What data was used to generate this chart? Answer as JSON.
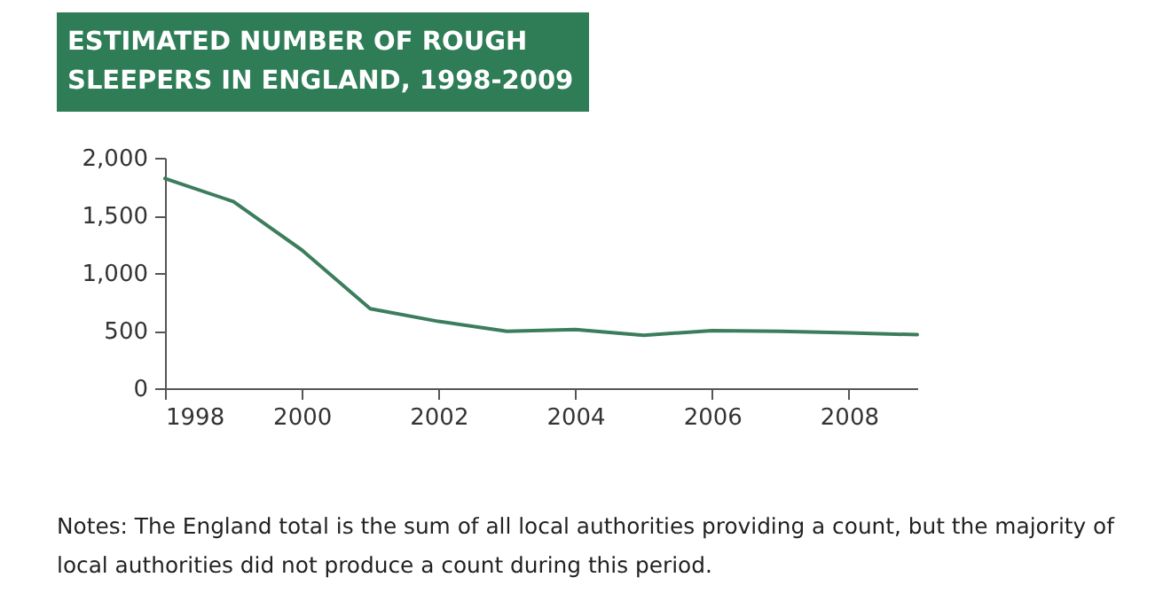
{
  "chart_data": {
    "type": "line",
    "title": "ESTIMATED NUMBER OF ROUGH SLEEPERS IN ENGLAND, 1998-2009",
    "x": [
      1998,
      1999,
      2000,
      2001,
      2002,
      2003,
      2004,
      2005,
      2006,
      2007,
      2008,
      2009
    ],
    "series": [
      {
        "color": "#3b7d5c",
        "values": [
          1820,
          1620,
          1200,
          690,
          580,
          495,
          510,
          460,
          500,
          495,
          480,
          465
        ]
      }
    ],
    "xlim": [
      1998,
      2009
    ],
    "xticks": [
      1998,
      2000,
      2002,
      2004,
      2006,
      2008
    ],
    "ylim": [
      0,
      2000
    ],
    "yticks": [
      {
        "value": 0,
        "label": "0"
      },
      {
        "value": 500,
        "label": "500"
      },
      {
        "value": 1000,
        "label": "1,000"
      },
      {
        "value": 1500,
        "label": "1,500"
      },
      {
        "value": 2000,
        "label": "2,000"
      }
    ],
    "grid": false,
    "legend": false,
    "marker": "none",
    "line_style": "solid",
    "annotations": [
      "Notes: The England total is the sum of all local authorities providing a count, but the majority of local authorities did not produce a count during this period."
    ]
  }
}
